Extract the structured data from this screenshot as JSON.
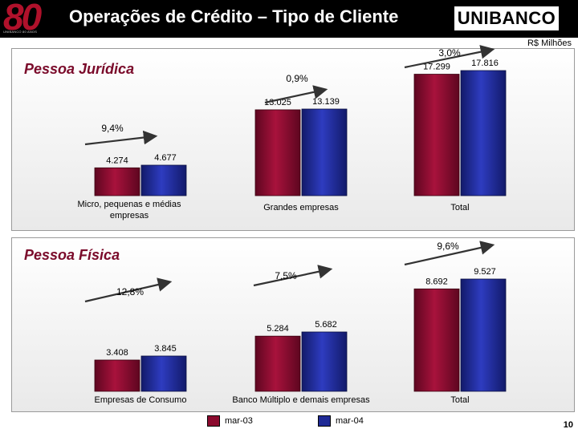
{
  "header": {
    "logo_number": "80",
    "logo_tagline": "UNIBANCO 80 ANOS",
    "title": "Operações de Crédito – Tipo de Cliente",
    "brand": "UNIBANCO"
  },
  "unit_label": "R$ Milhões",
  "legend": [
    {
      "name": "mar-03",
      "color": "#8b0a2e"
    },
    {
      "name": "mar-04",
      "color": "#1f2a96"
    }
  ],
  "page_number": "10",
  "colors": {
    "series_a": "#8b0a2e",
    "series_b": "#1f2a96",
    "title": "#7a0a2a"
  },
  "chart_data": [
    {
      "type": "bar",
      "title": "Pessoa Jurídica",
      "series": [
        {
          "name": "mar-03",
          "values_label": [
            "4.274",
            "13.025",
            "17.299"
          ],
          "values": [
            4274,
            13025,
            17299
          ]
        },
        {
          "name": "mar-04",
          "values_label": [
            "4.677",
            "13.139",
            "17.816"
          ],
          "values": [
            4677,
            13139,
            17816
          ]
        }
      ],
      "categories": [
        "Micro, pequenas e médias empresas",
        "Grandes empresas",
        "Total"
      ],
      "growth": [
        "9,4%",
        "0,9%",
        "3,0%"
      ]
    },
    {
      "type": "bar",
      "title": "Pessoa Física",
      "series": [
        {
          "name": "mar-03",
          "values_label": [
            "3.408",
            "5.284",
            "8.692"
          ],
          "values": [
            3408,
            5284,
            8692
          ]
        },
        {
          "name": "mar-04",
          "values_label": [
            "3.845",
            "5.682",
            "9.527"
          ],
          "values": [
            3845,
            5682,
            9527
          ]
        }
      ],
      "categories": [
        "Empresas de Consumo",
        "Banco Múltiplo e demais empresas",
        "Total"
      ],
      "growth": [
        "12,8%",
        "7,5%",
        "9,6%"
      ]
    }
  ]
}
